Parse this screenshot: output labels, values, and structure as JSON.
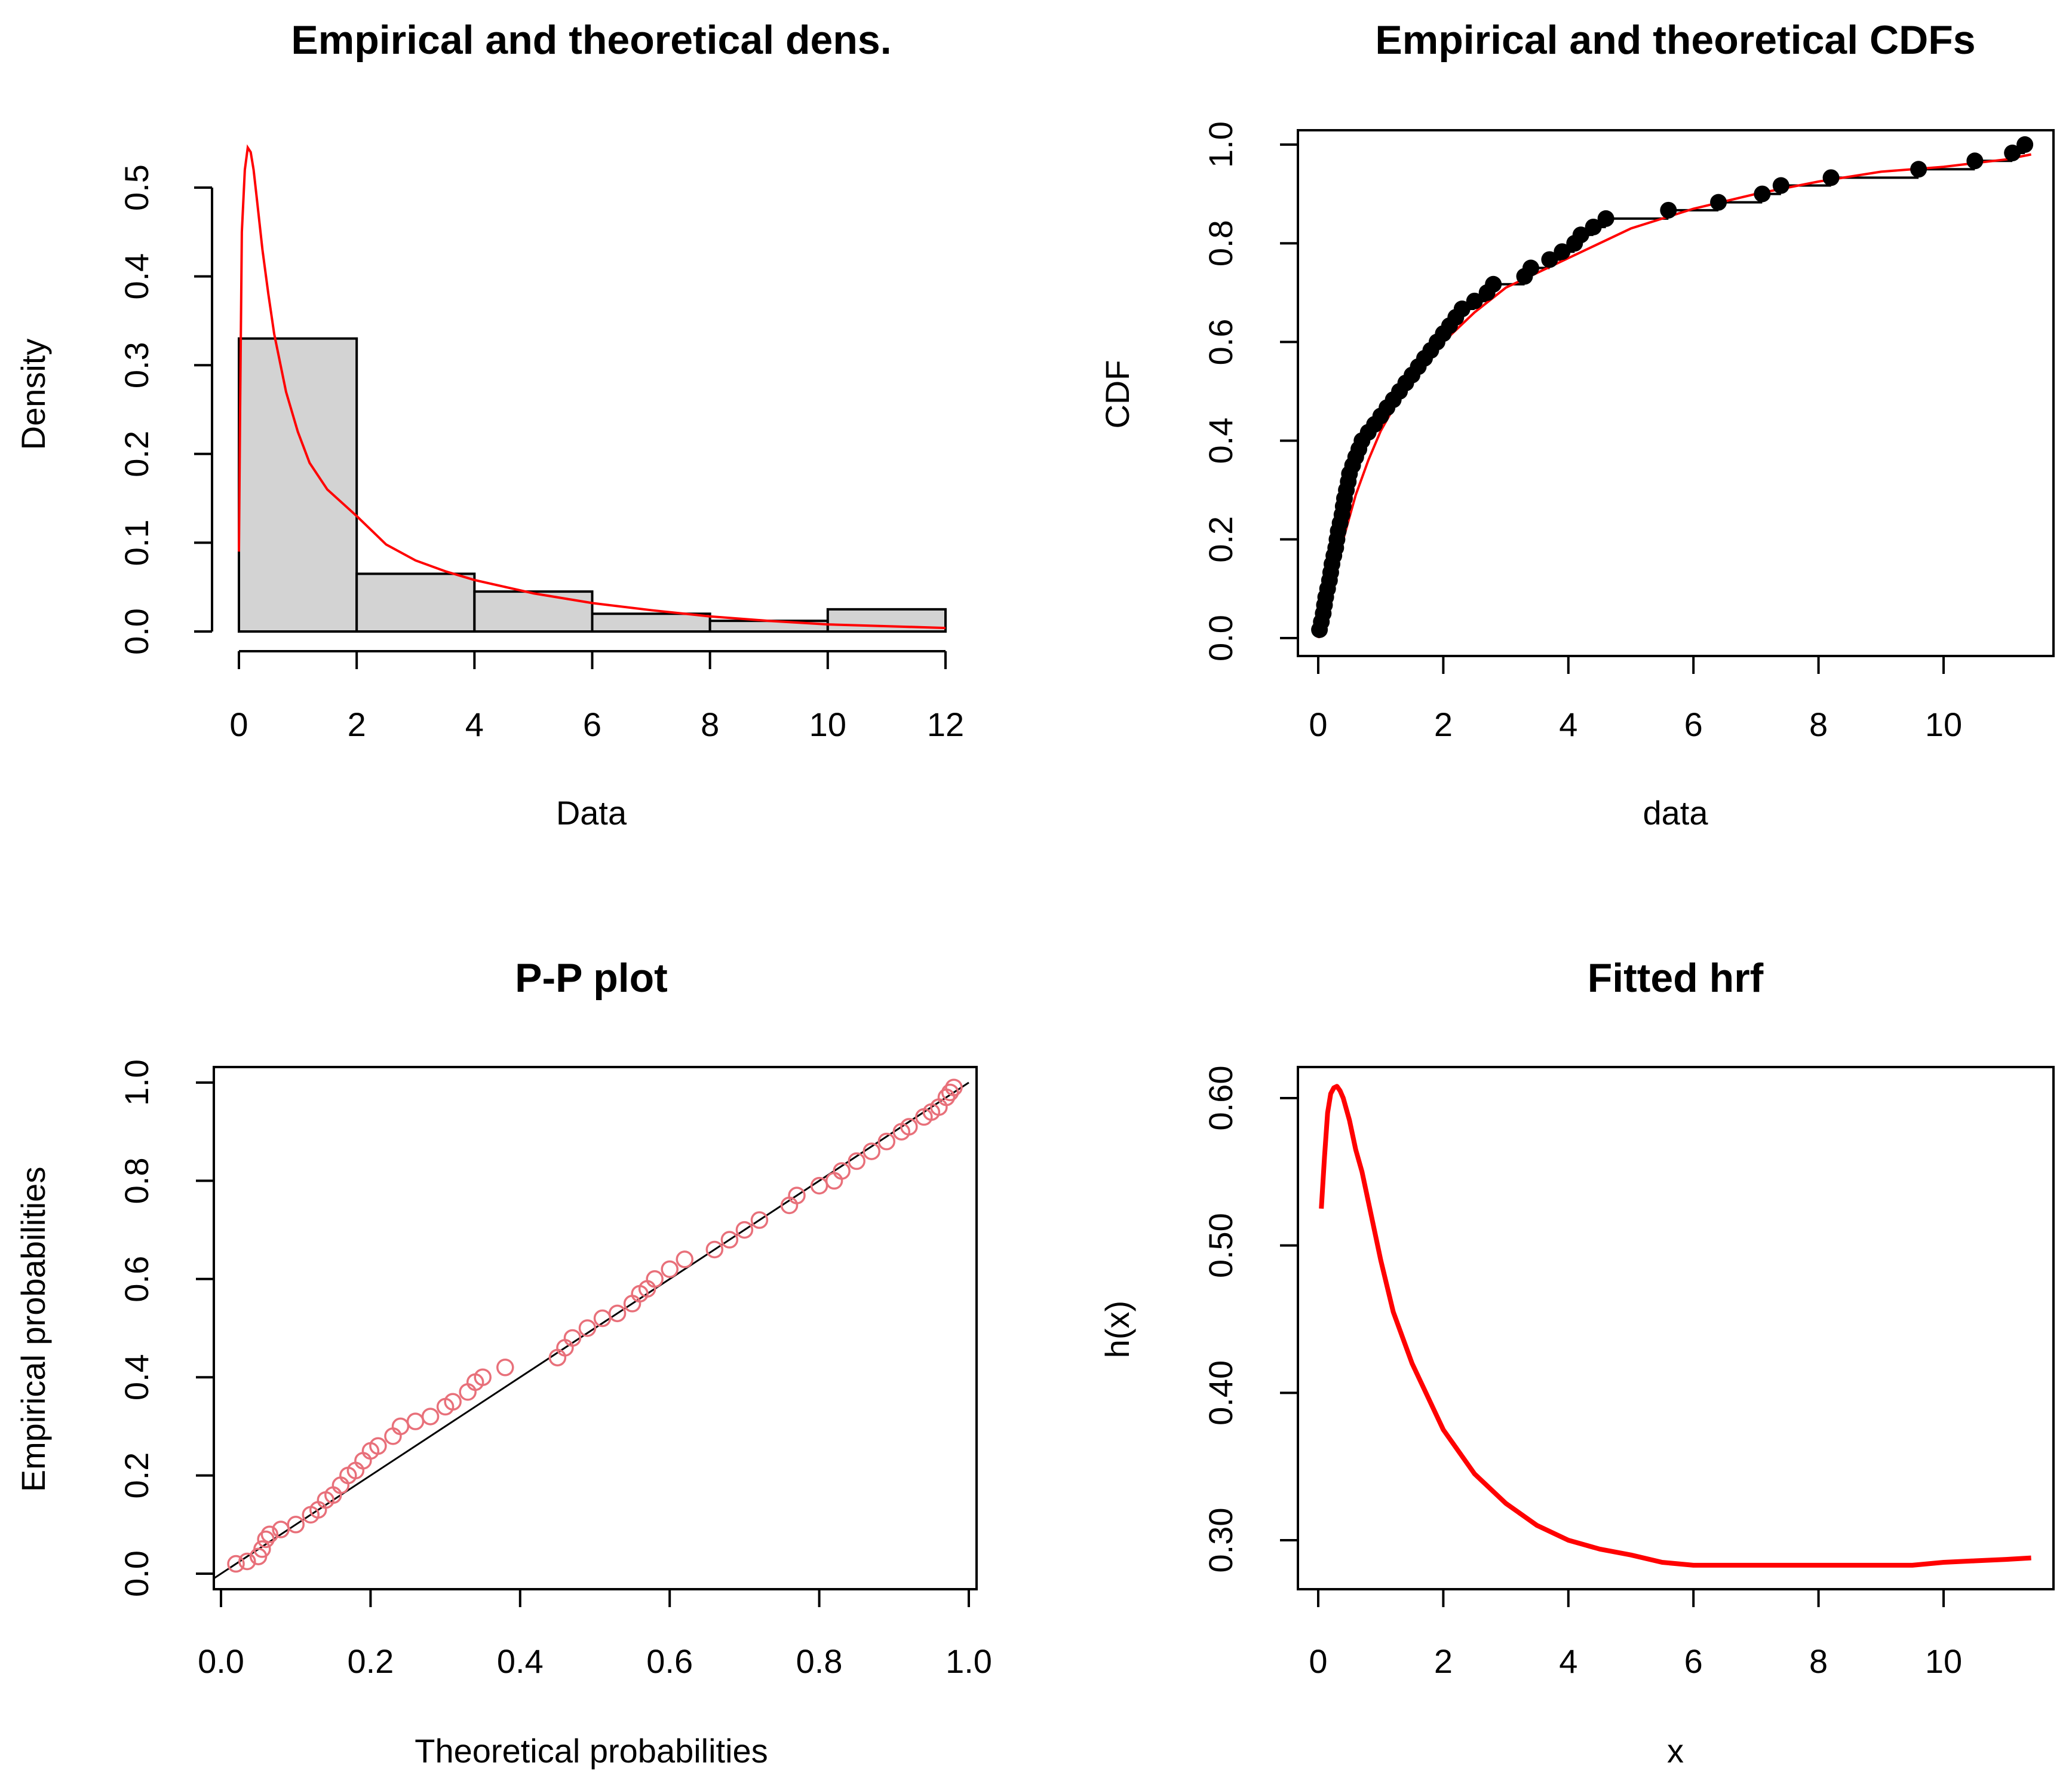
{
  "colors": {
    "background": "#ffffff",
    "fitted": "#ff0000",
    "pp_points": "#e8707a",
    "bars": "#d3d3d3",
    "ink": "#000000"
  },
  "chart_data": [
    {
      "type": "bar",
      "title": "Empirical and theoretical dens.",
      "xlabel": "Data",
      "ylabel": "Density",
      "xlim": [
        0,
        12
      ],
      "ylim": [
        0,
        0.55
      ],
      "xticks": [
        "0",
        "2",
        "4",
        "6",
        "8",
        "10",
        "12"
      ],
      "yticks": [
        "0.0",
        "0.1",
        "0.2",
        "0.3",
        "0.4",
        "0.5"
      ],
      "histogram": {
        "bins": [
          [
            0,
            2
          ],
          [
            2,
            4
          ],
          [
            4,
            6
          ],
          [
            6,
            8
          ],
          [
            8,
            10
          ],
          [
            10,
            12
          ]
        ],
        "values": [
          0.33,
          0.065,
          0.045,
          0.02,
          0.012,
          0.025
        ]
      },
      "fitted_density": {
        "x": [
          0.0,
          0.02,
          0.05,
          0.1,
          0.15,
          0.2,
          0.25,
          0.3,
          0.4,
          0.5,
          0.6,
          0.8,
          1.0,
          1.2,
          1.5,
          2.0,
          2.5,
          3.0,
          3.5,
          4.0,
          5.0,
          6.0,
          7.0,
          8.0,
          9.0,
          10.0,
          11.0,
          12.0
        ],
        "y": [
          0.09,
          0.25,
          0.45,
          0.52,
          0.545,
          0.54,
          0.52,
          0.49,
          0.43,
          0.38,
          0.335,
          0.27,
          0.225,
          0.19,
          0.16,
          0.13,
          0.098,
          0.08,
          0.068,
          0.058,
          0.043,
          0.032,
          0.024,
          0.017,
          0.012,
          0.008,
          0.006,
          0.004
        ]
      }
    },
    {
      "type": "line",
      "title": "Empirical and theoretical CDFs",
      "xlabel": "data",
      "ylabel": "CDF",
      "xlim": [
        -0.3,
        11.7
      ],
      "ylim": [
        -0.02,
        1.02
      ],
      "xticks": [
        "0",
        "2",
        "4",
        "6",
        "8",
        "10"
      ],
      "yticks": [
        "0.0",
        "0.2",
        "0.4",
        "0.6",
        "0.8",
        "1.0"
      ],
      "empirical_points": {
        "x": [
          0.02,
          0.05,
          0.08,
          0.1,
          0.12,
          0.15,
          0.18,
          0.2,
          0.22,
          0.25,
          0.28,
          0.3,
          0.32,
          0.35,
          0.38,
          0.4,
          0.42,
          0.45,
          0.48,
          0.5,
          0.55,
          0.6,
          0.65,
          0.7,
          0.8,
          0.9,
          1.0,
          1.1,
          1.2,
          1.3,
          1.4,
          1.5,
          1.6,
          1.7,
          1.8,
          1.9,
          2.0,
          2.1,
          2.2,
          2.3,
          2.5,
          2.7,
          2.8,
          3.3,
          3.4,
          3.7,
          3.9,
          4.1,
          4.2,
          4.4,
          4.6,
          5.6,
          6.4,
          7.1,
          7.4,
          8.2,
          9.6,
          10.5,
          11.1,
          11.3
        ],
        "y": [
          0.017,
          0.033,
          0.05,
          0.067,
          0.083,
          0.1,
          0.117,
          0.133,
          0.15,
          0.167,
          0.183,
          0.2,
          0.217,
          0.233,
          0.25,
          0.267,
          0.283,
          0.3,
          0.317,
          0.333,
          0.35,
          0.367,
          0.383,
          0.4,
          0.417,
          0.433,
          0.45,
          0.467,
          0.483,
          0.5,
          0.517,
          0.533,
          0.55,
          0.567,
          0.583,
          0.6,
          0.617,
          0.633,
          0.65,
          0.667,
          0.683,
          0.7,
          0.717,
          0.733,
          0.75,
          0.767,
          0.783,
          0.8,
          0.817,
          0.833,
          0.85,
          0.867,
          0.883,
          0.9,
          0.917,
          0.933,
          0.95,
          0.967,
          0.983,
          1.0
        ]
      },
      "fitted_cdf": {
        "x": [
          0.0,
          0.1,
          0.2,
          0.3,
          0.4,
          0.5,
          0.6,
          0.8,
          1.0,
          1.2,
          1.5,
          2.0,
          2.5,
          3.0,
          3.5,
          4.0,
          5.0,
          6.0,
          7.0,
          8.0,
          9.0,
          10.0,
          11.0,
          11.4
        ],
        "y": [
          0.0,
          0.05,
          0.1,
          0.155,
          0.2,
          0.245,
          0.29,
          0.36,
          0.42,
          0.465,
          0.53,
          0.6,
          0.66,
          0.71,
          0.74,
          0.77,
          0.83,
          0.87,
          0.9,
          0.925,
          0.945,
          0.955,
          0.97,
          0.98
        ]
      }
    },
    {
      "type": "scatter",
      "title": "P-P plot",
      "xlabel": "Theoretical probabilities",
      "ylabel": "Empirical probabilities",
      "xlim": [
        -0.01,
        1.01
      ],
      "ylim": [
        -0.03,
        1.03
      ],
      "xticks": [
        "0.0",
        "0.2",
        "0.4",
        "0.6",
        "0.8",
        "1.0"
      ],
      "yticks": [
        "0.0",
        "0.2",
        "0.4",
        "0.6",
        "0.8",
        "1.0"
      ],
      "reference_line": {
        "x": [
          0,
          1
        ],
        "y": [
          0,
          1
        ]
      },
      "points": {
        "x": [
          0.02,
          0.035,
          0.05,
          0.055,
          0.06,
          0.065,
          0.08,
          0.1,
          0.12,
          0.13,
          0.14,
          0.15,
          0.16,
          0.17,
          0.18,
          0.19,
          0.2,
          0.21,
          0.23,
          0.24,
          0.26,
          0.28,
          0.3,
          0.31,
          0.33,
          0.34,
          0.35,
          0.38,
          0.45,
          0.46,
          0.47,
          0.49,
          0.51,
          0.53,
          0.55,
          0.56,
          0.57,
          0.58,
          0.6,
          0.62,
          0.66,
          0.68,
          0.7,
          0.72,
          0.76,
          0.77,
          0.8,
          0.82,
          0.83,
          0.85,
          0.87,
          0.89,
          0.91,
          0.92,
          0.94,
          0.95,
          0.96,
          0.97,
          0.975,
          0.98
        ],
        "y": [
          0.02,
          0.025,
          0.035,
          0.05,
          0.07,
          0.08,
          0.09,
          0.1,
          0.12,
          0.13,
          0.15,
          0.16,
          0.18,
          0.2,
          0.21,
          0.23,
          0.25,
          0.26,
          0.28,
          0.3,
          0.31,
          0.32,
          0.34,
          0.35,
          0.37,
          0.39,
          0.4,
          0.42,
          0.44,
          0.46,
          0.48,
          0.5,
          0.52,
          0.53,
          0.55,
          0.57,
          0.58,
          0.6,
          0.62,
          0.64,
          0.66,
          0.68,
          0.7,
          0.72,
          0.75,
          0.77,
          0.79,
          0.8,
          0.82,
          0.84,
          0.86,
          0.88,
          0.9,
          0.91,
          0.93,
          0.94,
          0.95,
          0.97,
          0.98,
          0.99
        ]
      }
    },
    {
      "type": "line",
      "title": "Fitted hrf",
      "xlabel": "x",
      "ylabel": "h(x)",
      "xlim": [
        -0.3,
        11.7
      ],
      "ylim": [
        0.265,
        0.62
      ],
      "xticks": [
        "0",
        "2",
        "4",
        "6",
        "8",
        "10"
      ],
      "yticks": [
        "0.30",
        "0.40",
        "0.50",
        "0.60"
      ],
      "hrf": {
        "x": [
          0.05,
          0.1,
          0.15,
          0.2,
          0.25,
          0.3,
          0.35,
          0.4,
          0.5,
          0.6,
          0.7,
          0.8,
          1.0,
          1.2,
          1.5,
          2.0,
          2.5,
          3.0,
          3.5,
          4.0,
          4.5,
          5.0,
          5.5,
          6.0,
          7.0,
          8.0,
          9.0,
          9.5,
          10.0,
          10.5,
          11.0,
          11.4
        ],
        "y": [
          0.525,
          0.56,
          0.59,
          0.603,
          0.607,
          0.608,
          0.605,
          0.6,
          0.585,
          0.565,
          0.55,
          0.53,
          0.49,
          0.455,
          0.42,
          0.375,
          0.345,
          0.325,
          0.31,
          0.3,
          0.294,
          0.29,
          0.285,
          0.283,
          0.283,
          0.283,
          0.283,
          0.283,
          0.285,
          0.286,
          0.287,
          0.288
        ]
      }
    }
  ]
}
